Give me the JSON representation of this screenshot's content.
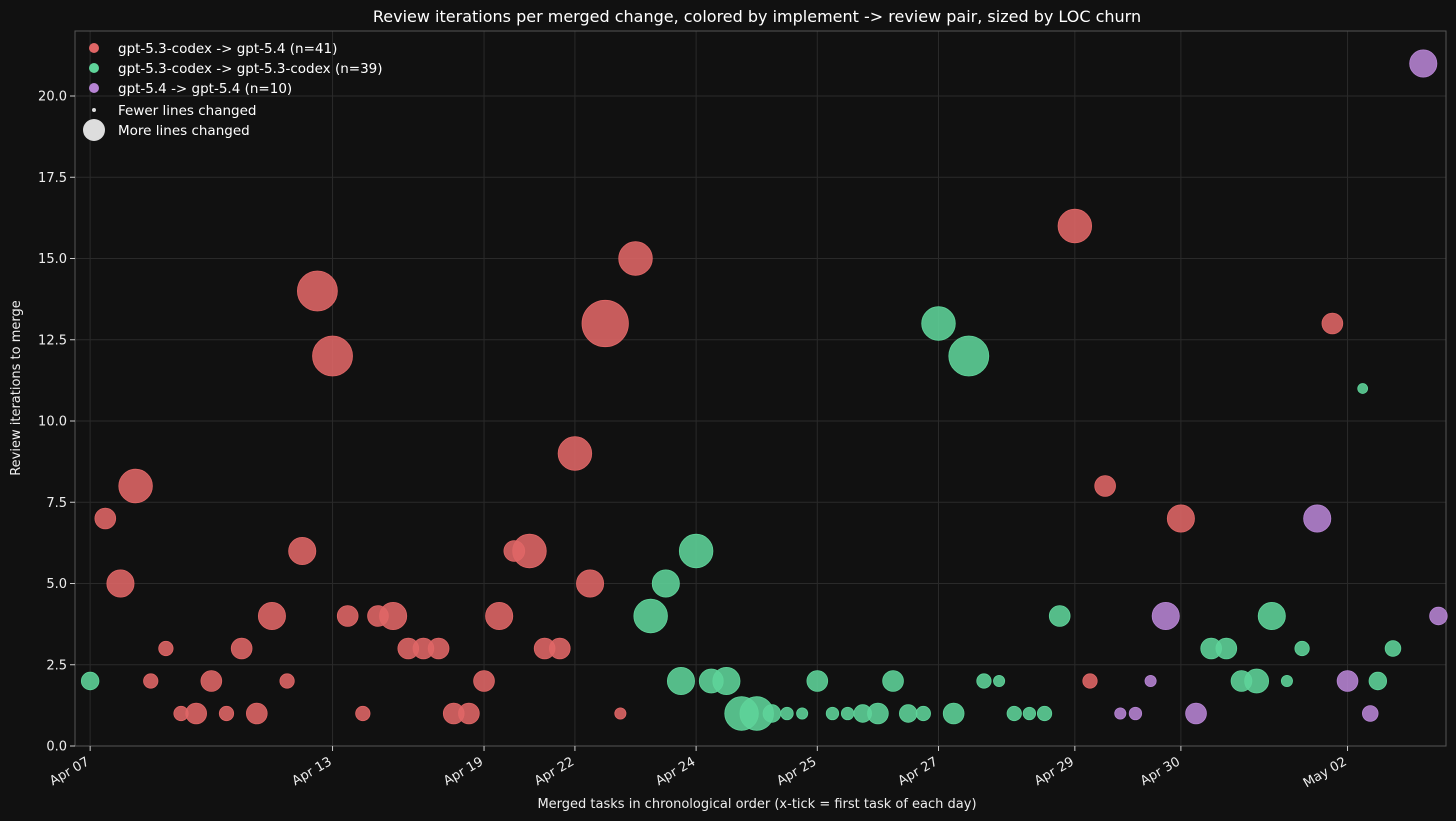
{
  "chart_data": {
    "type": "scatter",
    "title": "Review iterations per merged change, colored by implement -> review pair, sized by LOC churn",
    "xlabel": "Merged tasks in chronological order (x-tick = first task of each day)",
    "ylabel": "Review iterations to merge",
    "xlim": [
      -1,
      89.5
    ],
    "ylim": [
      0,
      22
    ],
    "yticks": [
      "0.0",
      "2.5",
      "5.0",
      "7.5",
      "10.0",
      "12.5",
      "15.0",
      "17.5",
      "20.0"
    ],
    "xticks": [
      {
        "index": 0,
        "label": "Apr 07"
      },
      {
        "index": 16,
        "label": "Apr 13"
      },
      {
        "index": 26,
        "label": "Apr 19"
      },
      {
        "index": 32,
        "label": "Apr 22"
      },
      {
        "index": 40,
        "label": "Apr 24"
      },
      {
        "index": 48,
        "label": "Apr 25"
      },
      {
        "index": 56,
        "label": "Apr 27"
      },
      {
        "index": 65,
        "label": "Apr 29"
      },
      {
        "index": 72,
        "label": "Apr 30"
      },
      {
        "index": 83,
        "label": "May 02"
      }
    ],
    "grid": true,
    "legend_position": "top-left",
    "size_legend": [
      "Fewer lines changed",
      "More lines changed"
    ],
    "series": [
      {
        "name": "gpt-5.3-codex -> gpt-5.4 (n=41)",
        "color": "#e06666",
        "points": [
          {
            "x": 1,
            "y": 7,
            "s": 2
          },
          {
            "x": 2,
            "y": 5,
            "s": 3
          },
          {
            "x": 3,
            "y": 8,
            "s": 4
          },
          {
            "x": 4,
            "y": 2,
            "s": 1
          },
          {
            "x": 5,
            "y": 3,
            "s": 1
          },
          {
            "x": 6,
            "y": 1,
            "s": 1
          },
          {
            "x": 7,
            "y": 1,
            "s": 2
          },
          {
            "x": 8,
            "y": 2,
            "s": 2
          },
          {
            "x": 9,
            "y": 1,
            "s": 1
          },
          {
            "x": 10,
            "y": 3,
            "s": 2
          },
          {
            "x": 11,
            "y": 1,
            "s": 2
          },
          {
            "x": 12,
            "y": 4,
            "s": 3
          },
          {
            "x": 13,
            "y": 2,
            "s": 1
          },
          {
            "x": 14,
            "y": 6,
            "s": 3
          },
          {
            "x": 15,
            "y": 14,
            "s": 5
          },
          {
            "x": 16,
            "y": 12,
            "s": 5
          },
          {
            "x": 17,
            "y": 4,
            "s": 2
          },
          {
            "x": 18,
            "y": 1,
            "s": 1
          },
          {
            "x": 19,
            "y": 4,
            "s": 2
          },
          {
            "x": 20,
            "y": 4,
            "s": 3
          },
          {
            "x": 21,
            "y": 3,
            "s": 2
          },
          {
            "x": 22,
            "y": 3,
            "s": 2
          },
          {
            "x": 23,
            "y": 3,
            "s": 2
          },
          {
            "x": 24,
            "y": 1,
            "s": 2
          },
          {
            "x": 25,
            "y": 1,
            "s": 2
          },
          {
            "x": 26,
            "y": 2,
            "s": 2
          },
          {
            "x": 27,
            "y": 4,
            "s": 3
          },
          {
            "x": 28,
            "y": 6,
            "s": 2
          },
          {
            "x": 29,
            "y": 6,
            "s": 4
          },
          {
            "x": 30,
            "y": 3,
            "s": 2
          },
          {
            "x": 31,
            "y": 3,
            "s": 2
          },
          {
            "x": 32,
            "y": 9,
            "s": 4
          },
          {
            "x": 33,
            "y": 5,
            "s": 3
          },
          {
            "x": 34,
            "y": 13,
            "s": 6
          },
          {
            "x": 35,
            "y": 1,
            "s": 0.5
          },
          {
            "x": 36,
            "y": 15,
            "s": 4
          },
          {
            "x": 65,
            "y": 16,
            "s": 4
          },
          {
            "x": 67,
            "y": 8,
            "s": 2
          },
          {
            "x": 72,
            "y": 7,
            "s": 3
          },
          {
            "x": 66,
            "y": 2,
            "s": 1
          },
          {
            "x": 82,
            "y": 13,
            "s": 2
          }
        ]
      },
      {
        "name": "gpt-5.3-codex -> gpt-5.3-codex (n=39)",
        "color": "#5fd49a",
        "points": [
          {
            "x": 0,
            "y": 2,
            "s": 1.5
          },
          {
            "x": 37,
            "y": 4,
            "s": 4
          },
          {
            "x": 38,
            "y": 5,
            "s": 3
          },
          {
            "x": 39,
            "y": 2,
            "s": 3
          },
          {
            "x": 40,
            "y": 6,
            "s": 4
          },
          {
            "x": 41,
            "y": 2,
            "s": 2.5
          },
          {
            "x": 42,
            "y": 2,
            "s": 3
          },
          {
            "x": 43,
            "y": 1,
            "s": 4
          },
          {
            "x": 44,
            "y": 1,
            "s": 4
          },
          {
            "x": 45,
            "y": 1,
            "s": 1.5
          },
          {
            "x": 46,
            "y": 1,
            "s": 0.7
          },
          {
            "x": 47,
            "y": 1,
            "s": 0.5
          },
          {
            "x": 48,
            "y": 2,
            "s": 2
          },
          {
            "x": 49,
            "y": 1,
            "s": 0.7
          },
          {
            "x": 50,
            "y": 1,
            "s": 0.7
          },
          {
            "x": 51,
            "y": 1,
            "s": 1.5
          },
          {
            "x": 52,
            "y": 1,
            "s": 2
          },
          {
            "x": 53,
            "y": 2,
            "s": 2
          },
          {
            "x": 54,
            "y": 1,
            "s": 1.5
          },
          {
            "x": 55,
            "y": 1,
            "s": 1
          },
          {
            "x": 56,
            "y": 13,
            "s": 4
          },
          {
            "x": 57,
            "y": 1,
            "s": 2
          },
          {
            "x": 58,
            "y": 12,
            "s": 5
          },
          {
            "x": 59,
            "y": 2,
            "s": 1
          },
          {
            "x": 60,
            "y": 2,
            "s": 0.5
          },
          {
            "x": 61,
            "y": 1,
            "s": 1
          },
          {
            "x": 62,
            "y": 1,
            "s": 0.7
          },
          {
            "x": 63,
            "y": 1,
            "s": 1
          },
          {
            "x": 64,
            "y": 4,
            "s": 2
          },
          {
            "x": 74,
            "y": 3,
            "s": 2
          },
          {
            "x": 75,
            "y": 3,
            "s": 2
          },
          {
            "x": 76,
            "y": 2,
            "s": 2
          },
          {
            "x": 77,
            "y": 2,
            "s": 2.5
          },
          {
            "x": 78,
            "y": 4,
            "s": 3
          },
          {
            "x": 79,
            "y": 2,
            "s": 0.5
          },
          {
            "x": 80,
            "y": 3,
            "s": 1
          },
          {
            "x": 84,
            "y": 11,
            "s": 0.3
          },
          {
            "x": 85,
            "y": 2,
            "s": 1.5
          },
          {
            "x": 86,
            "y": 3,
            "s": 1.2
          }
        ]
      },
      {
        "name": "gpt-5.4 -> gpt-5.4 (n=10)",
        "color": "#b784d4",
        "points": [
          {
            "x": 68,
            "y": 1,
            "s": 0.5
          },
          {
            "x": 69,
            "y": 1,
            "s": 0.7
          },
          {
            "x": 70,
            "y": 2,
            "s": 0.5
          },
          {
            "x": 71,
            "y": 4,
            "s": 3
          },
          {
            "x": 73,
            "y": 1,
            "s": 2
          },
          {
            "x": 81,
            "y": 7,
            "s": 3
          },
          {
            "x": 83,
            "y": 2,
            "s": 2
          },
          {
            "x": 84.5,
            "y": 1,
            "s": 1.2
          },
          {
            "x": 88,
            "y": 21,
            "s": 3
          },
          {
            "x": 89,
            "y": 4,
            "s": 1.5
          }
        ]
      }
    ]
  }
}
